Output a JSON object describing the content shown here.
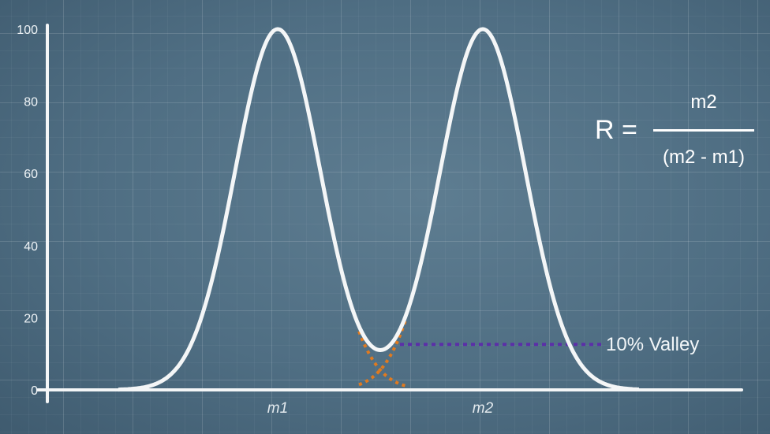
{
  "chart_data": {
    "type": "line",
    "title": "",
    "xlabel": "",
    "ylabel": "",
    "ylim": [
      0,
      100
    ],
    "yticks": [
      0,
      20,
      40,
      60,
      80,
      100
    ],
    "x_tick_labels": [
      "m1",
      "m2"
    ],
    "grid": true,
    "series": [
      {
        "peaks": [
          {
            "label": "m1",
            "height": 100
          },
          {
            "label": "m2",
            "height": 100
          }
        ],
        "valley_min": 10
      }
    ],
    "annotations": {
      "valley_label": "10% Valley",
      "valley_level": 10
    },
    "formula": {
      "lhs": "R =",
      "numerator": "m2",
      "denominator": "(m2 - m1)"
    }
  },
  "colors": {
    "curve": "#f4f6f7",
    "axis": "#f4f6f7",
    "valley_line": "#5b2fa8",
    "overlap_dots": "#e07a1f"
  }
}
